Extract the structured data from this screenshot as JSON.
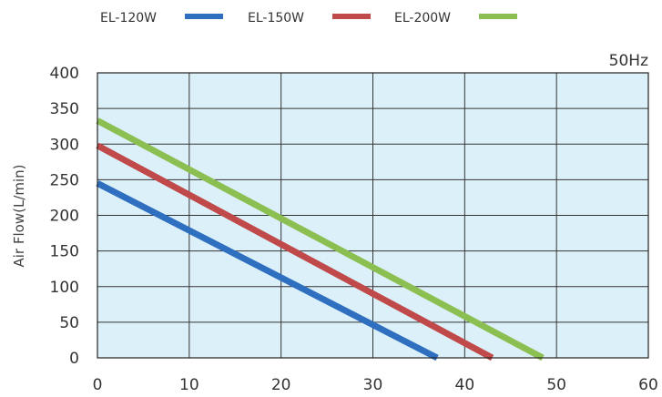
{
  "chart_data": {
    "type": "line",
    "title": "",
    "xlabel": "",
    "ylabel": "Air Flow(L/min)",
    "annotation": "50Hz",
    "xlim": [
      0,
      60
    ],
    "ylim": [
      0,
      400
    ],
    "x_ticks": [
      "0",
      "10",
      "20",
      "30",
      "40",
      "50",
      "60"
    ],
    "y_ticks": [
      "0",
      "50",
      "100",
      "150",
      "200",
      "250",
      "300",
      "350",
      "400"
    ],
    "grid": true,
    "legend_position": "top-left",
    "plot_background": "#dcf0f9",
    "series": [
      {
        "name": "EL-120W",
        "color": "#2f6fc0",
        "x": [
          0,
          37
        ],
        "y": [
          245,
          0
        ]
      },
      {
        "name": "EL-150W",
        "color": "#c0494a",
        "x": [
          0,
          43
        ],
        "y": [
          298,
          0
        ]
      },
      {
        "name": "EL-200W",
        "color": "#8cbf52",
        "x": [
          0,
          48.5
        ],
        "y": [
          333,
          0
        ]
      }
    ]
  }
}
